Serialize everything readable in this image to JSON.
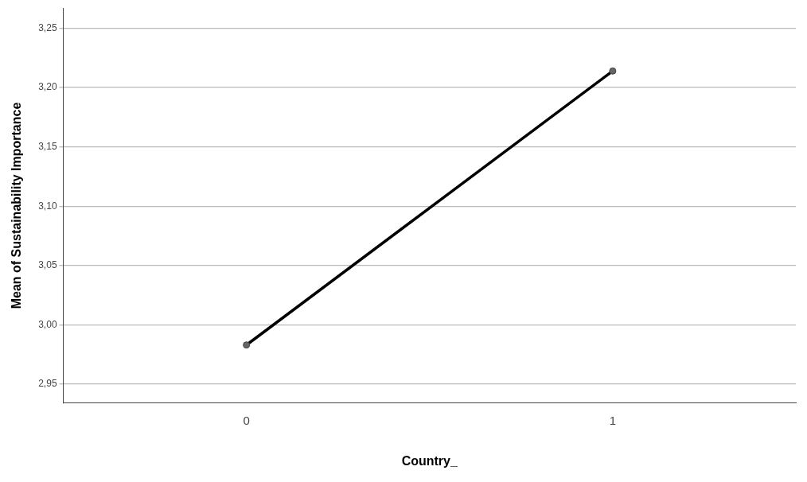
{
  "chart_data": {
    "type": "line",
    "xlabel": "Country_",
    "ylabel": "Mean of Sustainability Importance",
    "categories": [
      "0",
      "1"
    ],
    "series": [
      {
        "color": "#000000",
        "values": [
          2.983,
          3.214
        ]
      }
    ],
    "ylim": [
      2.934,
      3.267
    ],
    "yticks": [
      {
        "value": 2.95,
        "label": "2,95"
      },
      {
        "value": 3.0,
        "label": "3,00"
      },
      {
        "value": 3.05,
        "label": "3,05"
      },
      {
        "value": 3.1,
        "label": "3,10"
      },
      {
        "value": 3.15,
        "label": "3,15"
      },
      {
        "value": 3.2,
        "label": "3,20"
      },
      {
        "value": 3.25,
        "label": "3,25"
      }
    ],
    "grid": "y",
    "legend": false,
    "marker": "circle",
    "line_style": "solid"
  }
}
